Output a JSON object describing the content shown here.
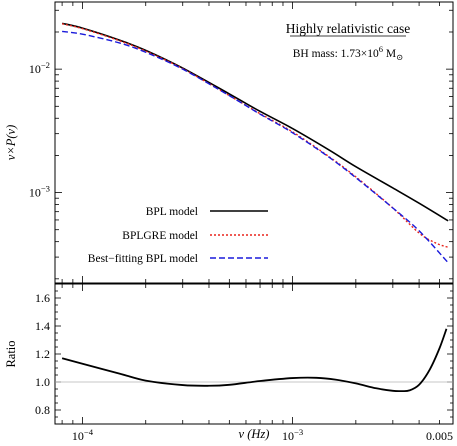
{
  "chart_data": [
    {
      "type": "line",
      "panel": "top",
      "title": "Highly relativistic case",
      "subtitle_prefix": "BH mass: 1.73×10",
      "subtitle_exp": "6",
      "subtitle_unit": "M",
      "subtitle_unit_sub": "⊙",
      "ylabel": "ν×P(ν)",
      "xlabel": "",
      "x_scale": "log",
      "y_scale": "log",
      "xlim": [
        7.4e-05,
        0.0058
      ],
      "ylim": [
        0.000185,
        0.035
      ],
      "y_tick_labels": [
        {
          "value": 0.01,
          "base": "10",
          "exp": "−2"
        },
        {
          "value": 0.001,
          "base": "10",
          "exp": "−3"
        }
      ],
      "legend_placement": "bottom-left",
      "series": [
        {
          "name": "BPL model",
          "color": "#000000",
          "dash": "solid",
          "x": [
            8e-05,
            0.0001,
            0.00015,
            0.0002,
            0.0003,
            0.0005,
            0.0007,
            0.001,
            0.0015,
            0.002,
            0.003,
            0.004,
            0.0055
          ],
          "y": [
            0.0235,
            0.0215,
            0.0172,
            0.0142,
            0.0102,
            0.0063,
            0.00455,
            0.0033,
            0.0022,
            0.00162,
            0.00109,
            0.00082,
            0.00059
          ]
        },
        {
          "name": "BPLGRE model",
          "color": "#e8231b",
          "dash": "dotted",
          "x": [
            8e-05,
            0.0001,
            0.00015,
            0.0002,
            0.0003,
            0.0005,
            0.0007,
            0.001,
            0.0015,
            0.002,
            0.003,
            0.004,
            0.0048,
            0.0055
          ],
          "y": [
            0.0233,
            0.0213,
            0.017,
            0.014,
            0.0101,
            0.0061,
            0.00436,
            0.0031,
            0.00194,
            0.00134,
            0.00075,
            0.00047,
            0.00039,
            0.00036
          ]
        },
        {
          "name": "Best−fitting BPL model",
          "color": "#1a1adb",
          "dash": "dashed",
          "x": [
            8e-05,
            0.0001,
            0.00015,
            0.0002,
            0.0003,
            0.0005,
            0.0007,
            0.001,
            0.0015,
            0.002,
            0.003,
            0.004,
            0.0055
          ],
          "y": [
            0.0202,
            0.0192,
            0.0163,
            0.0137,
            0.01,
            0.0061,
            0.00432,
            0.00305,
            0.00192,
            0.00132,
            0.00075,
            0.00049,
            0.00027
          ]
        }
      ]
    },
    {
      "type": "line",
      "panel": "bottom",
      "ylabel": "Ratio",
      "xlabel": "ν (Hz)",
      "x_scale": "log",
      "xlim": [
        7.4e-05,
        0.0058
      ],
      "ylim": [
        0.7,
        1.7
      ],
      "y_tick_labels": [
        "0.8",
        "1.0",
        "1.2",
        "1.4",
        "1.6"
      ],
      "x_tick_labels": [
        {
          "value": 0.0001,
          "base": "10",
          "exp": "−4"
        },
        {
          "value": 0.001,
          "base": "10",
          "exp": "−3"
        },
        {
          "value": 0.005,
          "base": "0.005",
          "exp": ""
        }
      ],
      "reference_line": 1.0,
      "series": [
        {
          "name": "",
          "color": "#000000",
          "x": [
            8e-05,
            0.0001,
            0.00015,
            0.0002,
            0.0003,
            0.0004,
            0.0005,
            0.0007,
            0.001,
            0.0013,
            0.0016,
            0.002,
            0.0025,
            0.003,
            0.0033,
            0.0036,
            0.004,
            0.0045,
            0.005,
            0.0054
          ],
          "y": [
            1.17,
            1.13,
            1.06,
            1.01,
            0.978,
            0.973,
            0.98,
            1.007,
            1.028,
            1.03,
            1.017,
            0.99,
            0.955,
            0.937,
            0.935,
            0.94,
            0.98,
            1.09,
            1.24,
            1.38
          ]
        }
      ]
    }
  ]
}
